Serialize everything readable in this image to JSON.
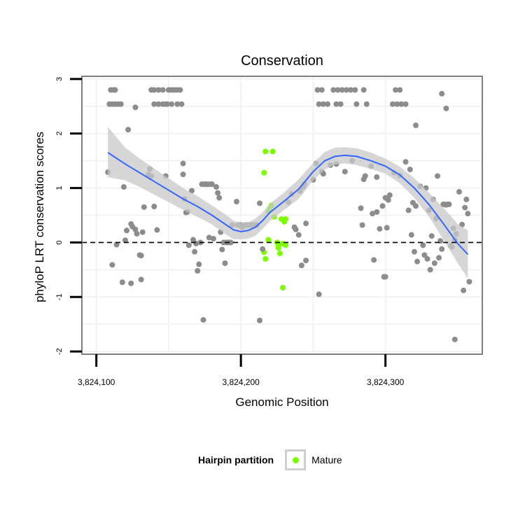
{
  "chart_data": {
    "type": "scatter",
    "title": "Conservation",
    "xlabel": "Genomic Position",
    "ylabel": "phyloP LRT conservation scores",
    "xlim": [
      3824090,
      3824367
    ],
    "ylim": [
      -2.05,
      3.05
    ],
    "x_ticks": [
      {
        "value": 3824100,
        "label": "3,824,100"
      },
      {
        "value": 3824200,
        "label": "3,824,200"
      },
      {
        "value": 3824300,
        "label": "3,824,300"
      }
    ],
    "y_ticks": [
      {
        "value": -2,
        "label": "-2"
      },
      {
        "value": -1,
        "label": "-1"
      },
      {
        "value": 0,
        "label": "0"
      },
      {
        "value": 1,
        "label": "1"
      },
      {
        "value": 2,
        "label": "2"
      },
      {
        "value": 3,
        "label": "3"
      }
    ],
    "grid": true,
    "reference_line": {
      "y": 0,
      "style": "dashed"
    },
    "colors": {
      "other": "#8c8c8c",
      "mature": "#7cfc00",
      "smooth": "#3366ff",
      "ribbon": "#c8c8c8",
      "panel_border": "#7f7f7f",
      "grid": "#f2f2f2"
    },
    "legend": {
      "title": "Hairpin partition",
      "position": "bottom",
      "entries": [
        {
          "label": "Mature",
          "color": "#7cfc00"
        }
      ]
    },
    "series": [
      {
        "name": "Mature",
        "color": "#7cfc00",
        "points": [
          [
            3824217,
            1.67
          ],
          [
            3824222,
            1.67
          ],
          [
            3824216,
            1.28
          ],
          [
            3824221,
            0.68
          ],
          [
            3824220,
            0.63
          ],
          [
            3824219,
            0.57
          ],
          [
            3824223,
            0.47
          ],
          [
            3824228,
            0.43
          ],
          [
            3824231,
            0.43
          ],
          [
            3824230,
            0.38
          ],
          [
            3824219,
            0.05
          ],
          [
            3824225,
            0.0
          ],
          [
            3824226,
            -0.05
          ],
          [
            3824229,
            -0.02
          ],
          [
            3824231,
            -0.05
          ],
          [
            3824226,
            -0.1
          ],
          [
            3824216,
            -0.18
          ],
          [
            3824227,
            -0.2
          ],
          [
            3824217,
            -0.3
          ],
          [
            3824229,
            -0.83
          ]
        ]
      },
      {
        "name": "Other",
        "color": "#8c8c8c",
        "points": [
          [
            3824110,
            2.8
          ],
          [
            3824112,
            2.8
          ],
          [
            3824113,
            2.8
          ],
          [
            3824109,
            2.54
          ],
          [
            3824111,
            2.54
          ],
          [
            3824113,
            2.54
          ],
          [
            3824115,
            2.54
          ],
          [
            3824117,
            2.54
          ],
          [
            3824138,
            2.8
          ],
          [
            3824140,
            2.8
          ],
          [
            3824143,
            2.8
          ],
          [
            3824146,
            2.8
          ],
          [
            3824150,
            2.8
          ],
          [
            3824152,
            2.8
          ],
          [
            3824154,
            2.8
          ],
          [
            3824156,
            2.8
          ],
          [
            3824158,
            2.8
          ],
          [
            3824140,
            2.54
          ],
          [
            3824143,
            2.54
          ],
          [
            3824146,
            2.54
          ],
          [
            3824149,
            2.54
          ],
          [
            3824152,
            2.54
          ],
          [
            3824156,
            2.54
          ],
          [
            3824159,
            2.54
          ],
          [
            3824127,
            2.48
          ],
          [
            3824122,
            2.07
          ],
          [
            3824148,
            2.54
          ],
          [
            3824253,
            2.8
          ],
          [
            3824256,
            2.8
          ],
          [
            3824264,
            2.8
          ],
          [
            3824267,
            2.8
          ],
          [
            3824270,
            2.8
          ],
          [
            3824273,
            2.8
          ],
          [
            3824276,
            2.8
          ],
          [
            3824279,
            2.8
          ],
          [
            3824285,
            2.8
          ],
          [
            3824254,
            2.54
          ],
          [
            3824257,
            2.54
          ],
          [
            3824260,
            2.54
          ],
          [
            3824266,
            2.54
          ],
          [
            3824269,
            2.54
          ],
          [
            3824280,
            2.54
          ],
          [
            3824287,
            2.54
          ],
          [
            3824307,
            2.8
          ],
          [
            3824310,
            2.8
          ],
          [
            3824305,
            2.54
          ],
          [
            3824308,
            2.54
          ],
          [
            3824311,
            2.54
          ],
          [
            3824314,
            2.54
          ],
          [
            3824339,
            2.73
          ],
          [
            3824342,
            2.46
          ],
          [
            3824321,
            2.15
          ],
          [
            3824108,
            1.29
          ],
          [
            3824119,
            1.02
          ],
          [
            3824111,
            -0.41
          ],
          [
            3824114,
            -0.04
          ],
          [
            3824118,
            -0.73
          ],
          [
            3824124,
            -0.75
          ],
          [
            3824131,
            -0.68
          ],
          [
            3824120,
            0.04
          ],
          [
            3824121,
            0.22
          ],
          [
            3824124,
            0.34
          ],
          [
            3824125,
            0.29
          ],
          [
            3824127,
            0.24
          ],
          [
            3824128,
            0.16
          ],
          [
            3824132,
            0.19
          ],
          [
            3824130,
            -0.23
          ],
          [
            3824131,
            -0.24
          ],
          [
            3824133,
            0.65
          ],
          [
            3824136,
            1.25
          ],
          [
            3824137,
            1.35
          ],
          [
            3824138,
            1.22
          ],
          [
            3824140,
            0.66
          ],
          [
            3824142,
            0.23
          ],
          [
            3824148,
            1.22
          ],
          [
            3824160,
            1.45
          ],
          [
            3824160,
            1.25
          ],
          [
            3824161,
            0.8
          ],
          [
            3824162,
            0.55
          ],
          [
            3824163,
            0.56
          ],
          [
            3824164,
            -0.05
          ],
          [
            3824166,
            0.95
          ],
          [
            3824167,
            0.05
          ],
          [
            3824168,
            -0.17
          ],
          [
            3824169,
            -0.02
          ],
          [
            3824170,
            -0.52
          ],
          [
            3824171,
            -0.4
          ],
          [
            3824172,
            0.0
          ],
          [
            3824173,
            1.07
          ],
          [
            3824174,
            -1.42
          ],
          [
            3824175,
            1.07
          ],
          [
            3824176,
            1.07
          ],
          [
            3824177,
            1.07
          ],
          [
            3824178,
            0.09
          ],
          [
            3824179,
            1.07
          ],
          [
            3824180,
            1.07
          ],
          [
            3824181,
            0.07
          ],
          [
            3824183,
            1.02
          ],
          [
            3824184,
            0.91
          ],
          [
            3824185,
            0.82
          ],
          [
            3824186,
            0.19
          ],
          [
            3824187,
            -0.13
          ],
          [
            3824188,
            0.0
          ],
          [
            3824189,
            -0.38
          ],
          [
            3824190,
            0.0
          ],
          [
            3824191,
            0.0
          ],
          [
            3824192,
            0.0
          ],
          [
            3824193,
            0.0
          ],
          [
            3824194,
            0.32
          ],
          [
            3824197,
            0.75
          ],
          [
            3824198,
            0.32
          ],
          [
            3824199,
            0.32
          ],
          [
            3824200,
            0.32
          ],
          [
            3824201,
            0.28
          ],
          [
            3824203,
            0.32
          ],
          [
            3824204,
            0.32
          ],
          [
            3824205,
            0.32
          ],
          [
            3824207,
            0.32
          ],
          [
            3824208,
            0.32
          ],
          [
            3824209,
            0.32
          ],
          [
            3824210,
            0.32
          ],
          [
            3824211,
            0.32
          ],
          [
            3824213,
            -1.43
          ],
          [
            3824213,
            0.72
          ],
          [
            3824215,
            -0.12
          ],
          [
            3824233,
            0.74
          ],
          [
            3824235,
            0.89
          ],
          [
            3824237,
            0.28
          ],
          [
            3824238,
            0.24
          ],
          [
            3824240,
            0.14
          ],
          [
            3824241,
            0.94
          ],
          [
            3824242,
            -0.42
          ],
          [
            3824243,
            1.02
          ],
          [
            3824244,
            1.07
          ],
          [
            3824245,
            0.35
          ],
          [
            3824245,
            -0.33
          ],
          [
            3824250,
            1.15
          ],
          [
            3824252,
            1.45
          ],
          [
            3824254,
            -0.95
          ],
          [
            3824256,
            1.3
          ],
          [
            3824257,
            1.26
          ],
          [
            3824262,
            1.42
          ],
          [
            3824266,
            1.44
          ],
          [
            3824272,
            1.3
          ],
          [
            3824277,
            1.5
          ],
          [
            3824283,
            0.63
          ],
          [
            3824284,
            0.32
          ],
          [
            3824285,
            1.16
          ],
          [
            3824286,
            1.22
          ],
          [
            3824290,
            1.4
          ],
          [
            3824291,
            0.53
          ],
          [
            3824292,
            -0.32
          ],
          [
            3824294,
            1.2
          ],
          [
            3824294,
            0.56
          ],
          [
            3824296,
            0.25
          ],
          [
            3824298,
            0.67
          ],
          [
            3824299,
            -0.63
          ],
          [
            3824300,
            -0.63
          ],
          [
            3824300,
            0.82
          ],
          [
            3824301,
            0.27
          ],
          [
            3824302,
            0.78
          ],
          [
            3824303,
            0.87
          ],
          [
            3824306,
            1.28
          ],
          [
            3824310,
            1.23
          ],
          [
            3824314,
            1.48
          ],
          [
            3824316,
            0.59
          ],
          [
            3824317,
            1.34
          ],
          [
            3824318,
            0.14
          ],
          [
            3824319,
            0.73
          ],
          [
            3824320,
            -0.17
          ],
          [
            3824321,
            0.67
          ],
          [
            3824322,
            -0.35
          ],
          [
            3824324,
            1.03
          ],
          [
            3824326,
            -0.05
          ],
          [
            3824327,
            -0.23
          ],
          [
            3824328,
            1.0
          ],
          [
            3824329,
            -0.3
          ],
          [
            3824330,
            0.59
          ],
          [
            3824331,
            -0.5
          ],
          [
            3824332,
            0.12
          ],
          [
            3824333,
            0.79
          ],
          [
            3824334,
            -0.38
          ],
          [
            3824335,
            0.44
          ],
          [
            3824336,
            1.22
          ],
          [
            3824337,
            -0.28
          ],
          [
            3824338,
            0.03
          ],
          [
            3824339,
            -0.12
          ],
          [
            3824340,
            0.7
          ],
          [
            3824341,
            0.7
          ],
          [
            3824342,
            0.69
          ],
          [
            3824343,
            0.7
          ],
          [
            3824344,
            0.7
          ],
          [
            3824345,
            -0.06
          ],
          [
            3824346,
            -0.08
          ],
          [
            3824347,
            0.26
          ],
          [
            3824348,
            0.05
          ],
          [
            3824349,
            0.16
          ],
          [
            3824351,
            0.93
          ],
          [
            3824353,
            0.33
          ],
          [
            3824354,
            -0.88
          ],
          [
            3824355,
            0.64
          ],
          [
            3824356,
            0.79
          ],
          [
            3824357,
            0.53
          ],
          [
            3824358,
            -0.72
          ],
          [
            3824348,
            -1.78
          ]
        ]
      }
    ],
    "smooth": {
      "x": [
        3824108,
        3824120,
        3824130,
        3824140,
        3824150,
        3824160,
        3824170,
        3824180,
        3824190,
        3824195,
        3824200,
        3824205,
        3824210,
        3824215,
        3824220,
        3824230,
        3824240,
        3824250,
        3824258,
        3824265,
        3824272,
        3824280,
        3824290,
        3824300,
        3824310,
        3824320,
        3824330,
        3824340,
        3824350,
        3824357
      ],
      "y": [
        1.65,
        1.44,
        1.28,
        1.12,
        0.96,
        0.8,
        0.66,
        0.5,
        0.32,
        0.23,
        0.2,
        0.22,
        0.28,
        0.4,
        0.55,
        0.76,
        0.98,
        1.3,
        1.5,
        1.58,
        1.6,
        1.58,
        1.5,
        1.4,
        1.24,
        1.0,
        0.7,
        0.35,
        -0.02,
        -0.22
      ],
      "lower": [
        1.2,
        1.14,
        1.02,
        0.88,
        0.74,
        0.6,
        0.47,
        0.33,
        0.14,
        0.06,
        0.06,
        0.07,
        0.12,
        0.25,
        0.39,
        0.6,
        0.8,
        1.14,
        1.34,
        1.43,
        1.45,
        1.42,
        1.35,
        1.26,
        1.09,
        0.82,
        0.48,
        0.06,
        -0.38,
        -0.66
      ],
      "upper": [
        2.12,
        1.74,
        1.54,
        1.36,
        1.18,
        1.0,
        0.85,
        0.68,
        0.5,
        0.4,
        0.36,
        0.37,
        0.44,
        0.55,
        0.71,
        0.92,
        1.16,
        1.46,
        1.66,
        1.74,
        1.75,
        1.73,
        1.65,
        1.54,
        1.39,
        1.18,
        0.92,
        0.64,
        0.34,
        0.22
      ]
    }
  }
}
